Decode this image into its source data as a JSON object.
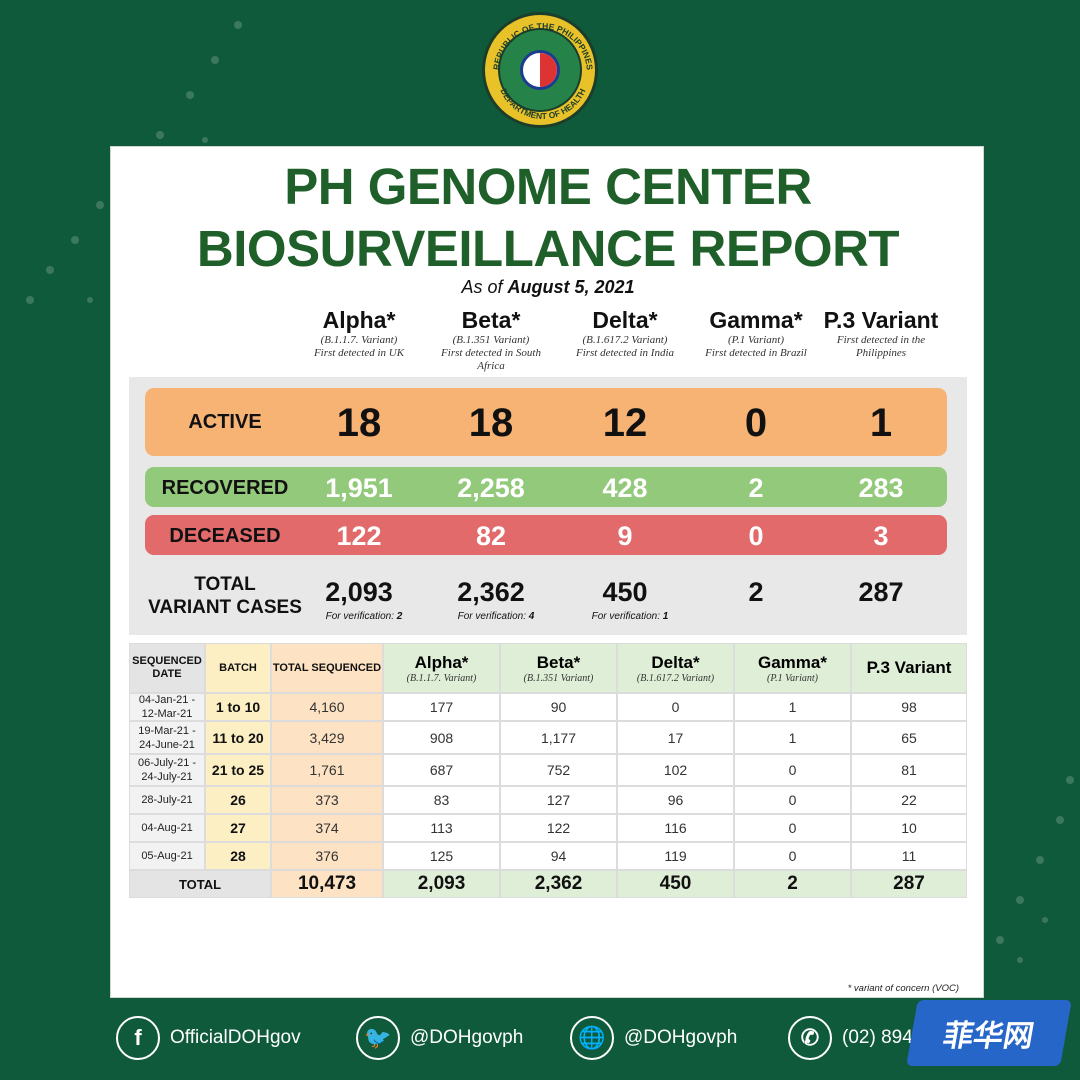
{
  "colors": {
    "background": "#0f5a3b",
    "title_green": "#1e5f2a",
    "active": "#f6b374",
    "recovered": "#93c97a",
    "deceased": "#e26a6a",
    "table_header": "#dfeed6",
    "total_sequenced_bg": "#fde3c4",
    "batch_bg": "#fcefc4"
  },
  "seal": {
    "top_text": "REPUBLIC OF THE PHILIPPINES",
    "bottom_text": "DEPARTMENT OF HEALTH"
  },
  "title": {
    "line1": "PH GENOME CENTER",
    "line2": "BIOSURVEILLANCE REPORT"
  },
  "as_of": {
    "prefix": "As of",
    "date": "August 5, 2021"
  },
  "variants": [
    {
      "name": "Alpha*",
      "sub": "(B.1.1.7. Variant)\nFirst detected in UK"
    },
    {
      "name": "Beta*",
      "sub": "(B.1.351 Variant)\nFirst detected in South Africa"
    },
    {
      "name": "Delta*",
      "sub": "(B.1.617.2 Variant)\nFirst detected in India"
    },
    {
      "name": "Gamma*",
      "sub": "(P.1 Variant)\nFirst detected in Brazil"
    },
    {
      "name": "P.3 Variant",
      "sub": "First detected in the Philippines"
    }
  ],
  "summary": {
    "active": {
      "label": "ACTIVE",
      "values": [
        "18",
        "18",
        "12",
        "0",
        "1"
      ]
    },
    "recovered": {
      "label": "RECOVERED",
      "values": [
        "1,951",
        "2,258",
        "428",
        "2",
        "283"
      ]
    },
    "deceased": {
      "label": "DECEASED",
      "values": [
        "122",
        "82",
        "9",
        "0",
        "3"
      ]
    },
    "total": {
      "label_line1": "TOTAL",
      "label_line2": "VARIANT CASES",
      "values": [
        "2,093",
        "2,362",
        "450",
        "2",
        "287"
      ],
      "verification_prefix": "For verification:",
      "verification": [
        "2",
        "4",
        "1"
      ]
    }
  },
  "table": {
    "headers": {
      "date": "SEQUENCED DATE",
      "batch": "BATCH",
      "total": "TOTAL SEQUENCED",
      "variants": [
        {
          "name": "Alpha*",
          "sub": "(B.1.1.7. Variant)"
        },
        {
          "name": "Beta*",
          "sub": "(B.1.351 Variant)"
        },
        {
          "name": "Delta*",
          "sub": "(B.1.617.2 Variant)"
        },
        {
          "name": "Gamma*",
          "sub": "(P.1 Variant)"
        },
        {
          "name": "P.3 Variant",
          "sub": ""
        }
      ]
    },
    "rows": [
      {
        "date": "04-Jan-21 - 12-Mar-21",
        "batch": "1 to 10",
        "total": "4,160",
        "values": [
          "177",
          "90",
          "0",
          "1",
          "98"
        ]
      },
      {
        "date": "19-Mar-21 - 24-June-21",
        "batch": "11 to 20",
        "total": "3,429",
        "values": [
          "908",
          "1,177",
          "17",
          "1",
          "65"
        ]
      },
      {
        "date": "06-July-21 - 24-July-21",
        "batch": "21 to 25",
        "total": "1,761",
        "values": [
          "687",
          "752",
          "102",
          "0",
          "81"
        ]
      },
      {
        "date": "28-July-21",
        "batch": "26",
        "total": "373",
        "values": [
          "83",
          "127",
          "96",
          "0",
          "22"
        ]
      },
      {
        "date": "04-Aug-21",
        "batch": "27",
        "total": "374",
        "values": [
          "113",
          "122",
          "116",
          "0",
          "10"
        ]
      },
      {
        "date": "05-Aug-21",
        "batch": "28",
        "total": "376",
        "values": [
          "125",
          "94",
          "119",
          "0",
          "11"
        ]
      }
    ],
    "total_row": {
      "label": "TOTAL",
      "total": "10,473",
      "values": [
        "2,093",
        "2,362",
        "450",
        "2",
        "287"
      ]
    }
  },
  "footnote": "* variant of concern (VOC)",
  "social": [
    {
      "icon": "facebook-icon",
      "glyph": "f",
      "handle": "OfficialDOHgov"
    },
    {
      "icon": "twitter-icon",
      "glyph": "🐦",
      "handle": "@DOHgovph"
    },
    {
      "icon": "globe-icon",
      "glyph": "🌐",
      "handle": "@DOHgovph"
    },
    {
      "icon": "phone-icon",
      "glyph": "✆",
      "handle": "(02) 894"
    }
  ],
  "watermark": "菲华网"
}
